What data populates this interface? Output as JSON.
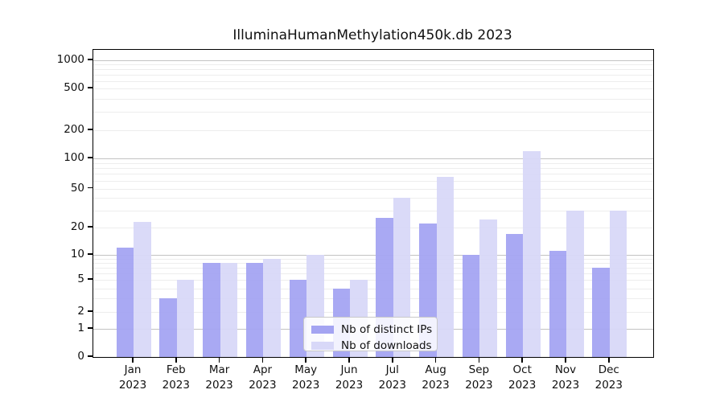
{
  "chart_data": {
    "type": "bar",
    "title": "IlluminaHumanMethylation450k.db 2023",
    "categories": [
      "Jan",
      "Feb",
      "Mar",
      "Apr",
      "May",
      "Jun",
      "Jul",
      "Aug",
      "Sep",
      "Oct",
      "Nov",
      "Dec"
    ],
    "year": "2023",
    "series": [
      {
        "name": "Nb of distinct IPs",
        "color": "#a4a4f2",
        "values": [
          12,
          3,
          8,
          8,
          5,
          4,
          25,
          22,
          10,
          17,
          11,
          7
        ]
      },
      {
        "name": "Nb of downloads",
        "color": "#d8d8f8",
        "values": [
          23,
          5,
          8,
          9,
          10,
          5,
          40,
          65,
          24,
          120,
          30,
          30
        ]
      }
    ],
    "y_ticks": [
      0,
      1,
      2,
      5,
      10,
      20,
      50,
      100,
      200,
      500,
      1000
    ],
    "xlabel": "",
    "ylabel": "",
    "y_scale": "log-like (0,1,2,5,10,20,50,100,200,500,1000)",
    "ylim": [
      0,
      1300
    ],
    "grid": true,
    "legend_position": "inside-bottom-center"
  }
}
